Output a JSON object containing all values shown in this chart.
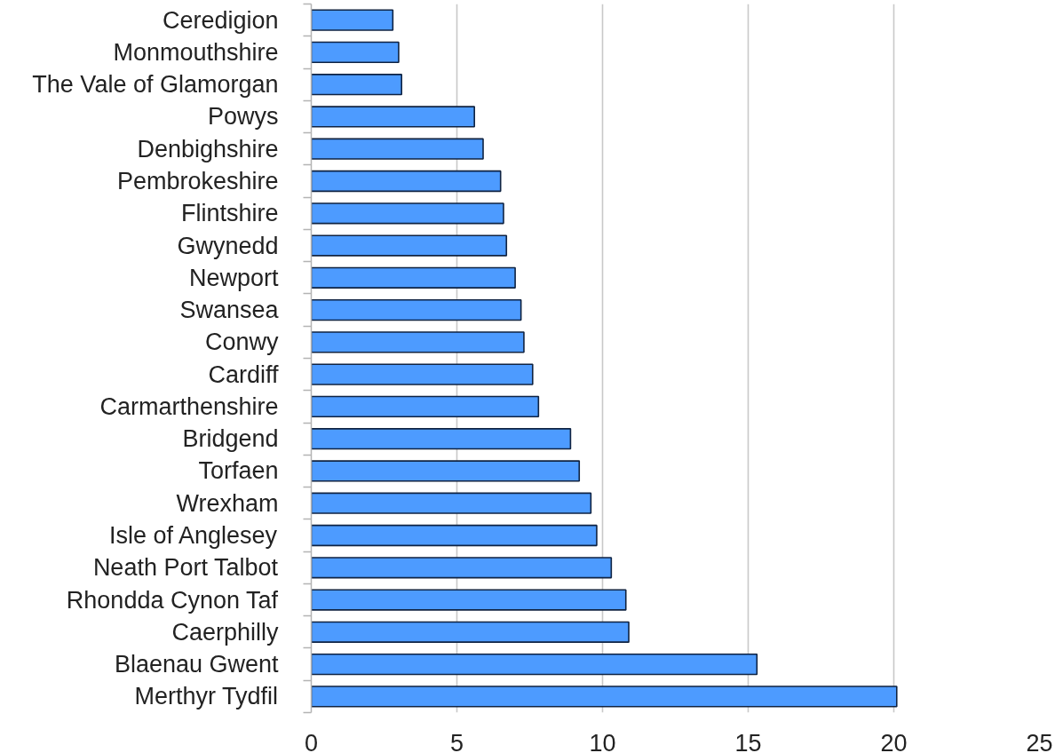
{
  "chart_data": {
    "type": "bar",
    "orientation": "horizontal",
    "categories": [
      "Ceredigion",
      "Monmouthshire",
      "The Vale of Glamorgan",
      "Powys",
      "Denbighshire",
      "Pembrokeshire",
      "Flintshire",
      "Gwynedd",
      "Newport",
      "Swansea",
      "Conwy",
      "Cardiff",
      "Carmarthenshire",
      "Bridgend",
      "Torfaen",
      "Wrexham",
      "Isle of Anglesey",
      "Neath Port Talbot",
      "Rhondda Cynon Taf",
      "Caerphilly",
      "Blaenau Gwent",
      "Merthyr Tydfil"
    ],
    "values": [
      2.8,
      3.0,
      3.1,
      5.6,
      5.9,
      6.5,
      6.6,
      6.7,
      7.0,
      7.2,
      7.3,
      7.6,
      7.8,
      8.9,
      9.2,
      9.6,
      9.8,
      10.3,
      10.8,
      10.9,
      15.3,
      20.1
    ],
    "color": "#4d9bff",
    "xlim": [
      0,
      25
    ],
    "xticks": [
      0,
      5,
      10,
      15,
      20,
      25
    ],
    "grid": "x"
  }
}
